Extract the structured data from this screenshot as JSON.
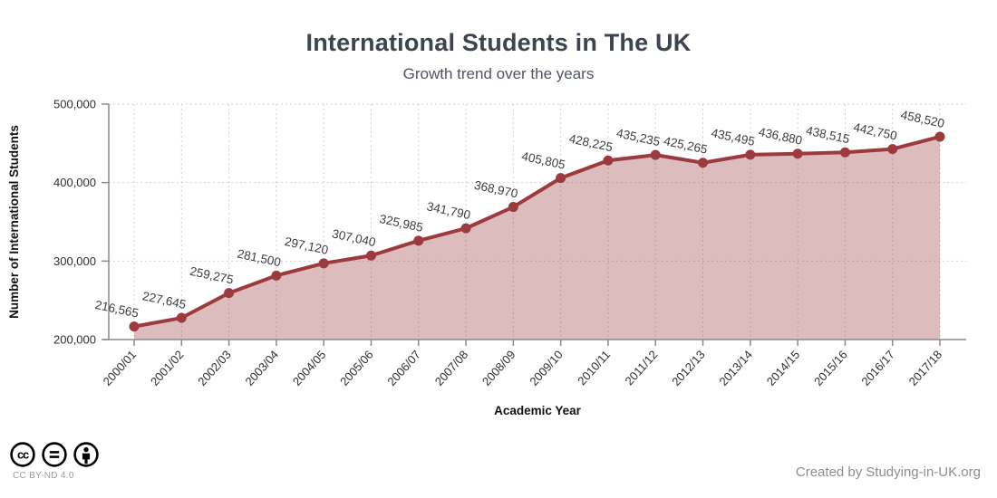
{
  "page": {
    "title": "International Students in The UK",
    "subtitle": "Growth trend over the years"
  },
  "chart_data": {
    "type": "area",
    "title": "International Students in The UK",
    "subtitle": "Growth trend over the years",
    "xlabel": "Academic Year",
    "ylabel": "Number of International Students",
    "categories": [
      "2000/01",
      "2001/02",
      "2002/03",
      "2003/04",
      "2004/05",
      "2005/06",
      "2006/07",
      "2007/08",
      "2008/09",
      "2009/10",
      "2010/11",
      "2011/12",
      "2012/13",
      "2013/14",
      "2014/15",
      "2015/16",
      "2016/17",
      "2017/18"
    ],
    "values": [
      216565,
      227645,
      259275,
      281500,
      297120,
      307040,
      325985,
      341790,
      368970,
      405805,
      428225,
      435235,
      425265,
      435495,
      436880,
      438515,
      442750,
      458520
    ],
    "ylim": [
      200000,
      500000
    ],
    "ytick_step": 100000,
    "grid": "dashed",
    "legend": "none",
    "line_color": "#9c3a3e",
    "fill_color": "#9c3a3e",
    "fill_opacity": 0.34,
    "marker_radius": 5.5,
    "data_label_color": "#3d3d3d",
    "axis_color": "#8a8a8a",
    "grid_color": "#d2d2d2",
    "tick_label_color": "#2f2f2f",
    "axis_title_color": "#111111"
  },
  "footer": {
    "license": "CC BY-ND 4.0",
    "credit_prefix": "Created by",
    "credit_site": "Studying-in-UK.org"
  }
}
